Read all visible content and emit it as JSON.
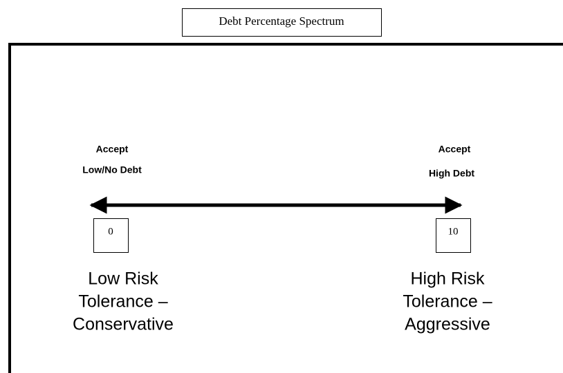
{
  "title": "Debt Percentage Spectrum",
  "left": {
    "top_label": [
      "Accept",
      "Low/No Debt"
    ],
    "value": 0,
    "description": [
      "Low Risk",
      "Tolerance –",
      "Conservative"
    ]
  },
  "right": {
    "top_label": [
      "Accept",
      "High Debt"
    ],
    "value": 10,
    "description": [
      "High Risk",
      "Tolerance –",
      "Aggressive"
    ]
  }
}
